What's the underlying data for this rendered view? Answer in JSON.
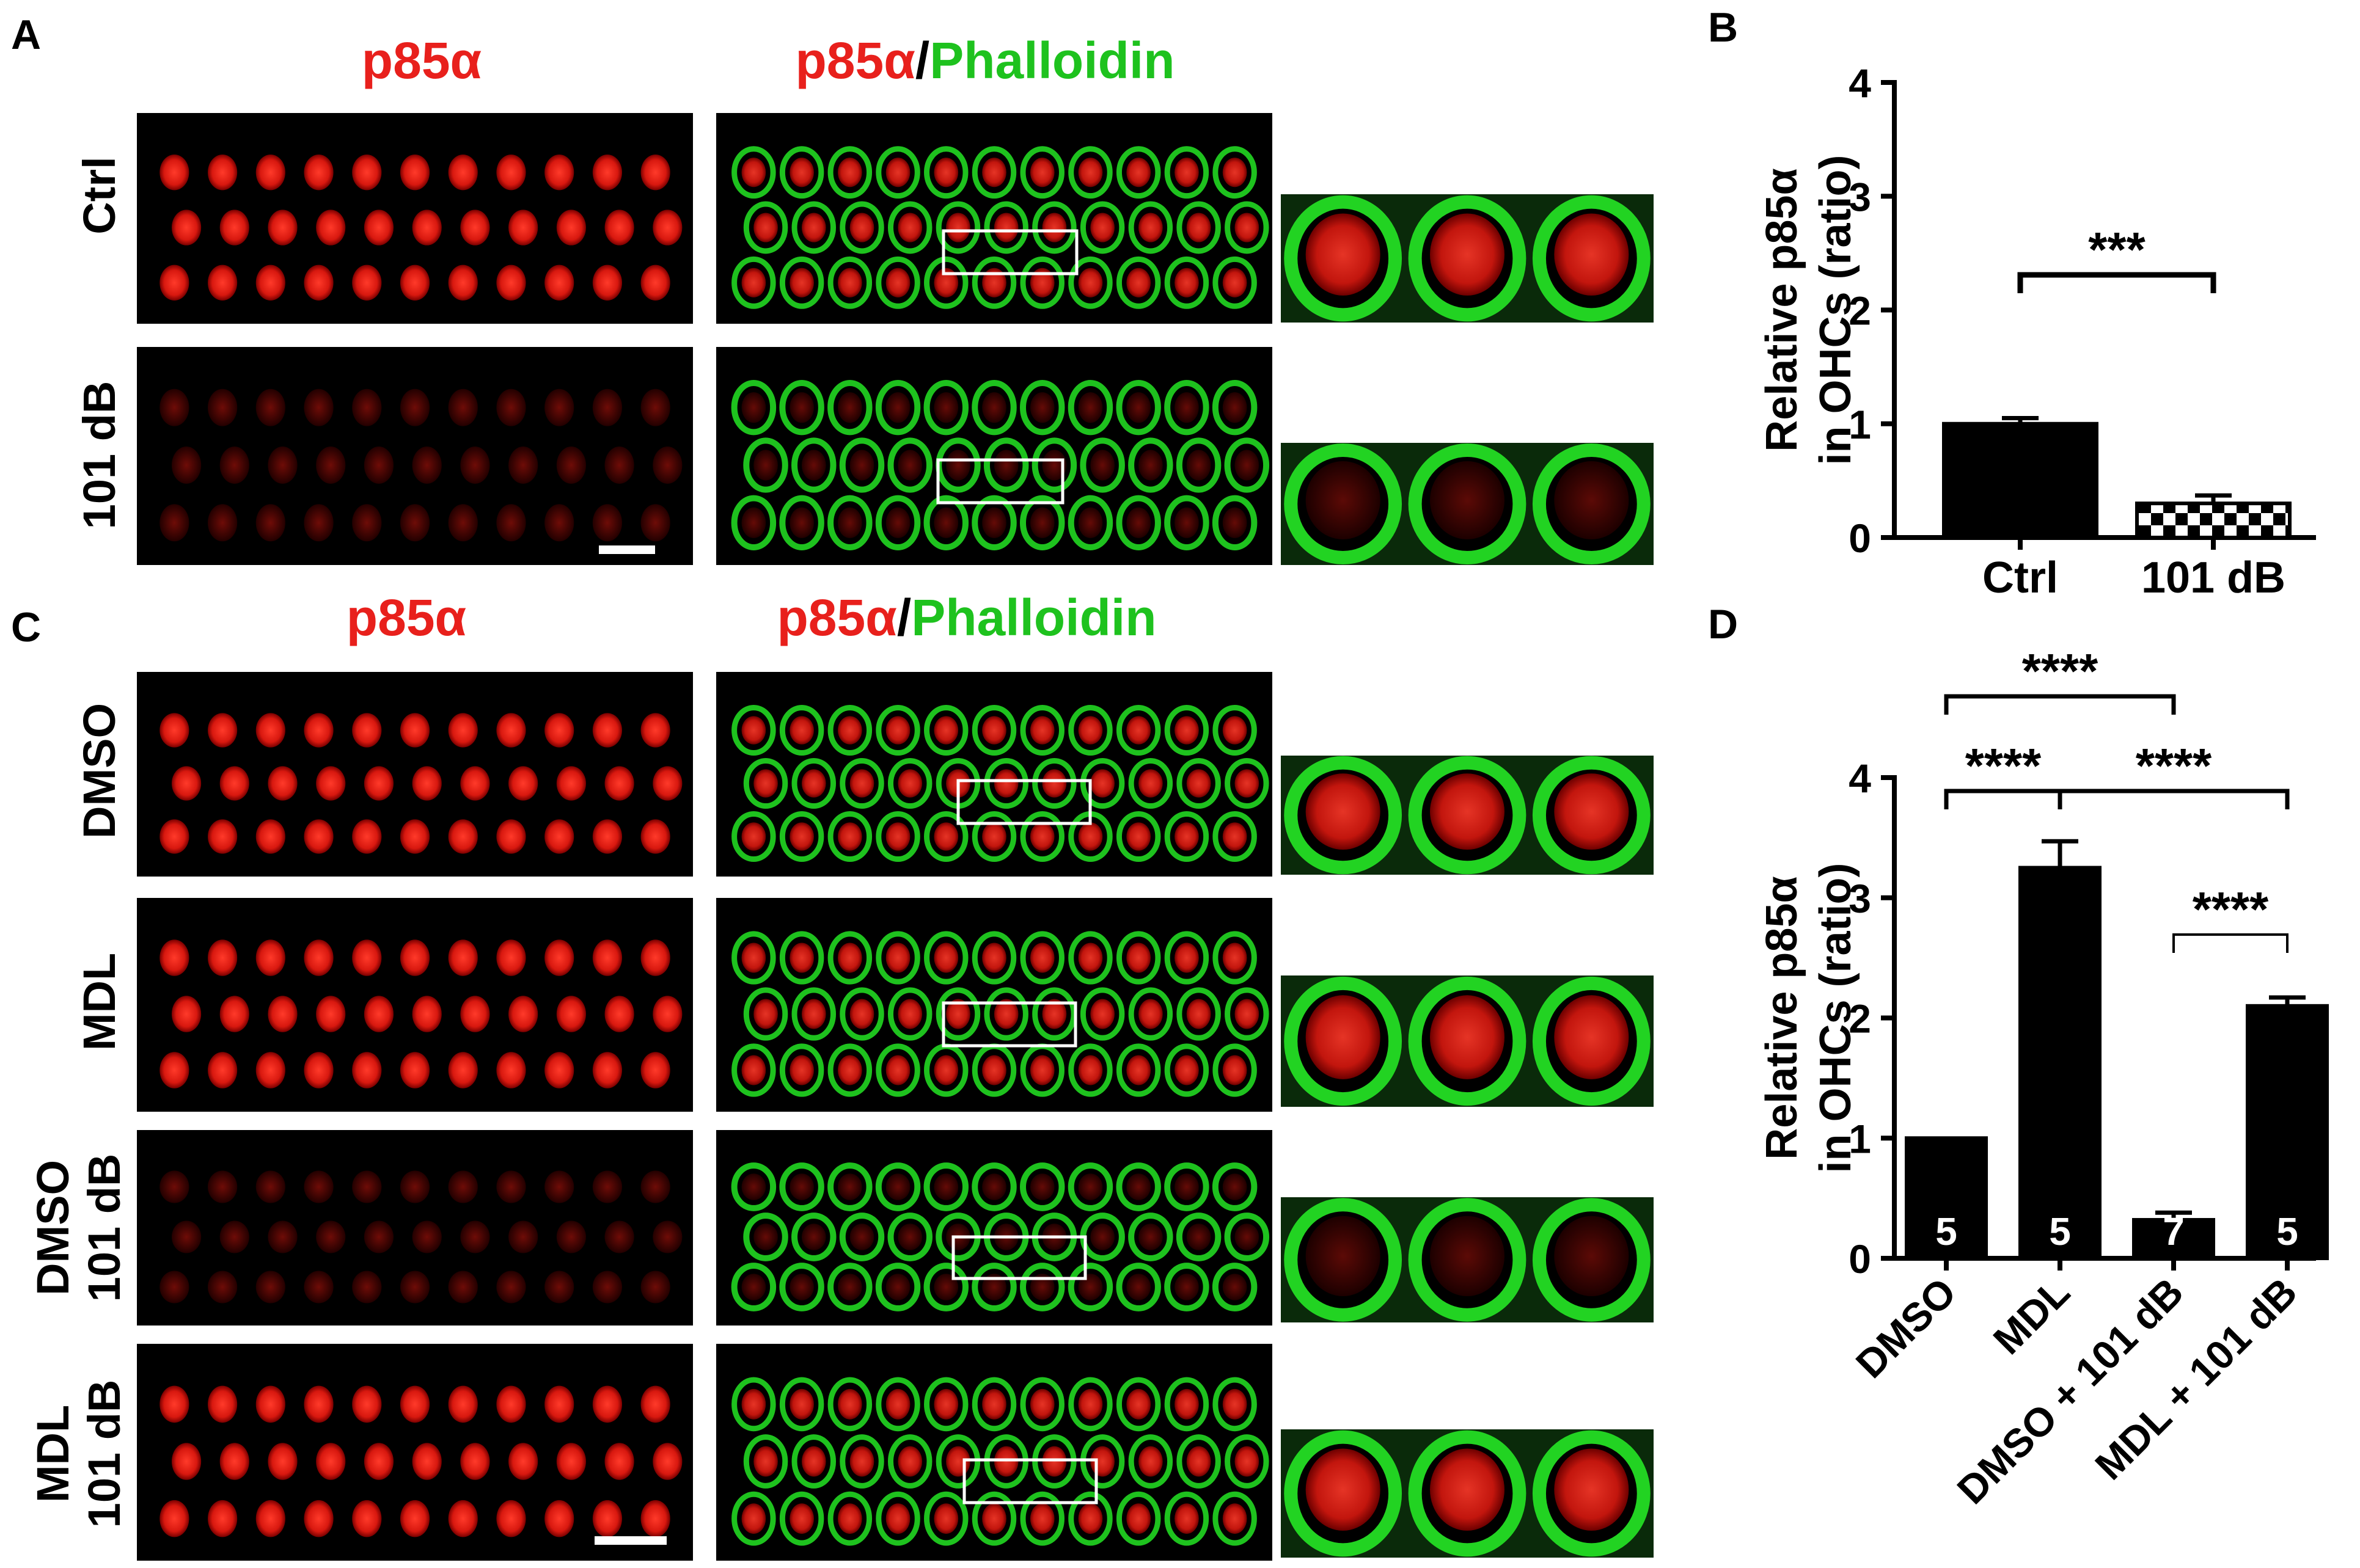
{
  "colors": {
    "red": "#e8201c",
    "green": "#1ec21e",
    "black": "#000000"
  },
  "panel_letters": [
    "A",
    "B",
    "C",
    "D"
  ],
  "panel_A": {
    "col1_header": {
      "p85": "p85α"
    },
    "col2_header": {
      "p85": "p85α",
      "slash": "/",
      "phalloidin": "Phalloidin"
    },
    "row_labels": [
      [
        "Ctrl"
      ],
      [
        "101 dB"
      ]
    ]
  },
  "panel_C": {
    "col1_header": {
      "p85": "p85α"
    },
    "col2_header": {
      "p85": "p85α",
      "slash": "/",
      "phalloidin": "Phalloidin"
    },
    "row_labels": [
      [
        "DMSO"
      ],
      [
        "MDL"
      ],
      [
        "DMSO",
        "101 dB"
      ],
      [
        "MDL",
        "101 dB"
      ]
    ]
  },
  "chart_data": [
    {
      "panel": "B",
      "type": "bar",
      "ylabel": [
        "Relative p85α",
        "in OHCs (ratio)"
      ],
      "categories": [
        "Ctrl",
        "101 dB"
      ],
      "values": [
        1.0,
        0.3
      ],
      "errors": [
        0.05,
        0.07
      ],
      "fills": [
        "solid",
        "checkered"
      ],
      "ylim": [
        0,
        4
      ],
      "yticks": [
        "0",
        "1",
        "2",
        "3",
        "4"
      ],
      "significance": [
        {
          "from": 0,
          "to": 1,
          "label": "***"
        }
      ]
    },
    {
      "panel": "D",
      "type": "bar",
      "ylabel": [
        "Relative p85α",
        "in OHCs (ratio)"
      ],
      "categories": [
        "DMSO",
        "MDL",
        "DMSO + 101 dB",
        "MDL + 101 dB"
      ],
      "values": [
        1.0,
        3.25,
        0.32,
        2.1
      ],
      "errors": [
        0.0,
        0.22,
        0.06,
        0.07
      ],
      "n": [
        "5",
        "5",
        "7",
        "5"
      ],
      "ylim": [
        0,
        4
      ],
      "yticks": [
        "0",
        "1",
        "2",
        "3",
        "4"
      ],
      "significance": [
        {
          "from": 0,
          "to": 1,
          "label": "****",
          "level": 2
        },
        {
          "from": 1,
          "to": 3,
          "label": "****",
          "level": 2
        },
        {
          "from": 2,
          "to": 3,
          "label": "****",
          "level": 1
        },
        {
          "from": 0,
          "to": 2,
          "label": "****",
          "level": 3
        }
      ]
    }
  ]
}
